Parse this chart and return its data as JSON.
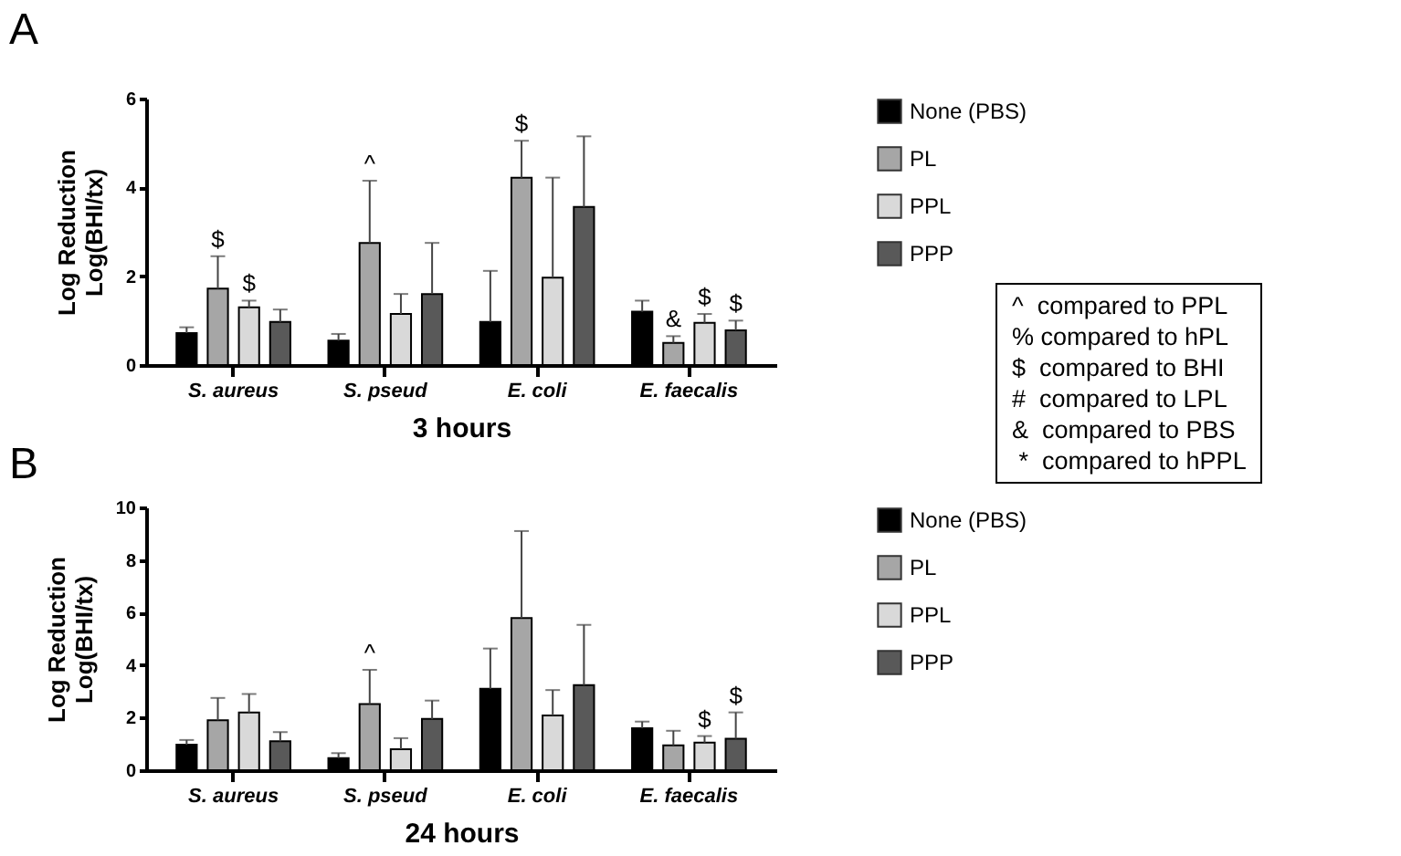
{
  "chart_data": [
    {
      "type": "bar",
      "title": "A",
      "xlabel": "3 hours",
      "ylabel": "Log Reduction\nLog(BHI/tx)",
      "categories": [
        "S. aureus",
        "S. pseud",
        "E. coli",
        "E. faecalis"
      ],
      "ylim": [
        0,
        6
      ],
      "yticks": [
        0,
        2,
        4,
        6
      ],
      "legend": "right",
      "series": [
        {
          "name": "None (PBS)",
          "color": "#000000",
          "values": [
            0.72,
            0.55,
            0.97,
            1.2
          ],
          "errors": [
            [
              0.72,
              0.85
            ],
            [
              0.55,
              0.7
            ],
            [
              0.97,
              2.12
            ],
            [
              1.2,
              1.45
            ]
          ],
          "value_labels": [
            null,
            null,
            null,
            null
          ]
        },
        {
          "name": "PL",
          "color": "#a6a6a6",
          "values": [
            1.72,
            2.75,
            4.22,
            0.5
          ],
          "errors": [
            [
              1.72,
              2.45
            ],
            [
              2.75,
              4.15
            ],
            [
              4.22,
              5.05
            ],
            [
              0.5,
              0.65
            ]
          ],
          "value_labels": [
            "$",
            "^",
            "$",
            "&"
          ]
        },
        {
          "name": "PPL",
          "color": "#d9d9d9",
          "values": [
            1.3,
            1.15,
            1.97,
            0.95
          ],
          "errors": [
            [
              1.3,
              1.45
            ],
            [
              1.15,
              1.6
            ],
            [
              1.97,
              4.22
            ],
            [
              0.95,
              1.15
            ]
          ],
          "value_labels": [
            "$",
            null,
            null,
            "$"
          ]
        },
        {
          "name": "PPP",
          "color": "#595959",
          "values": [
            0.97,
            1.6,
            3.56,
            0.78
          ],
          "errors": [
            [
              0.97,
              1.25
            ],
            [
              1.6,
              2.75
            ],
            [
              3.56,
              5.15
            ],
            [
              0.78,
              1.0
            ]
          ],
          "value_labels": [
            null,
            null,
            null,
            "$"
          ]
        }
      ],
      "annotations": [
        "^  compared to PPL",
        "% compared to hPL",
        "$  compared to BHI",
        "#  compared to LPL",
        "&  compared to PBS",
        " *  compared to hPPL"
      ]
    },
    {
      "type": "bar",
      "title": "B",
      "xlabel": "24 hours",
      "ylabel": "Log Reduction\nLog(BHI/tx)",
      "categories": [
        "S. aureus",
        "S. pseud",
        "E. coli",
        "E. faecalis"
      ],
      "ylim": [
        0,
        10
      ],
      "yticks": [
        0,
        2,
        4,
        6,
        8,
        10
      ],
      "legend": "right",
      "series": [
        {
          "name": "None (PBS)",
          "color": "#000000",
          "values": [
            0.97,
            0.46,
            3.1,
            1.6
          ],
          "errors": [
            [
              0.97,
              1.15
            ],
            [
              0.46,
              0.65
            ],
            [
              3.1,
              4.63
            ],
            [
              1.6,
              1.85
            ]
          ],
          "value_labels": [
            null,
            null,
            null,
            null
          ]
        },
        {
          "name": "PL",
          "color": "#a6a6a6",
          "values": [
            1.9,
            2.52,
            5.79,
            0.95
          ],
          "errors": [
            [
              1.9,
              2.75
            ],
            [
              2.52,
              3.82
            ],
            [
              5.79,
              9.1
            ],
            [
              0.95,
              1.5
            ]
          ],
          "value_labels": [
            null,
            "^",
            null,
            null
          ]
        },
        {
          "name": "PPL",
          "color": "#d9d9d9",
          "values": [
            2.2,
            0.8,
            2.08,
            1.05
          ],
          "errors": [
            [
              2.2,
              2.9
            ],
            [
              0.8,
              1.22
            ],
            [
              2.08,
              3.05
            ],
            [
              1.05,
              1.3
            ]
          ],
          "value_labels": [
            null,
            null,
            null,
            "$"
          ]
        },
        {
          "name": "PPP",
          "color": "#595959",
          "values": [
            1.1,
            1.95,
            3.24,
            1.2
          ],
          "errors": [
            [
              1.1,
              1.45
            ],
            [
              1.95,
              2.65
            ],
            [
              3.24,
              5.53
            ],
            [
              1.2,
              2.2
            ]
          ],
          "value_labels": [
            null,
            null,
            null,
            "$"
          ]
        }
      ]
    }
  ]
}
